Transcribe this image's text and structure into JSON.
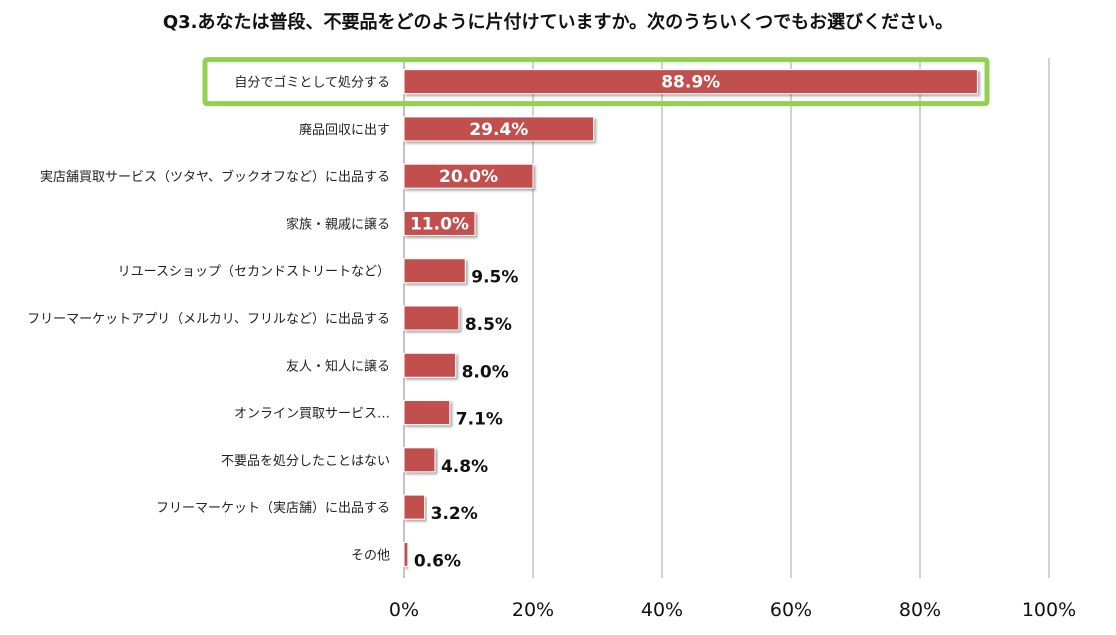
{
  "chart_data": {
    "type": "bar",
    "orientation": "horizontal",
    "title": "Q3.あなたは普段、不要品をどのように片付けていますか。次のうちいくつでもお選びください。",
    "categories": [
      "自分でゴミとして処分する",
      "廃品回収に出す",
      "実店舗買取サービス（ツタヤ、ブックオフなど）に出品する",
      "家族・親戚に譲る",
      "リユースショップ（セカンドストリートなど）",
      "フリーマーケットアプリ（メルカリ、フリルなど）に出品する",
      "友人・知人に譲る",
      "オンライン買取サービス…",
      "不要品を処分したことはない",
      "フリーマーケット（実店舗）に出品する",
      "その他"
    ],
    "values": [
      88.9,
      29.4,
      20.0,
      11.0,
      9.5,
      8.5,
      8.0,
      7.1,
      4.8,
      3.2,
      0.6
    ],
    "value_labels": [
      "88.9%",
      "29.4%",
      "20.0%",
      "11.0%",
      "9.5%",
      "8.5%",
      "8.0%",
      "7.1%",
      "4.8%",
      "3.2%",
      "0.6%"
    ],
    "x_ticks": [
      "0%",
      "20%",
      "40%",
      "60%",
      "80%",
      "100%"
    ],
    "xlim": [
      0,
      100
    ],
    "grid": true,
    "highlighted_category": "自分でゴミとして処分する",
    "colors": {
      "bar": "#c0504d",
      "highlight": "#92d050",
      "grid": "#a6a6a6",
      "label_inside": "#ffffff",
      "label_outside": "#111111"
    }
  }
}
